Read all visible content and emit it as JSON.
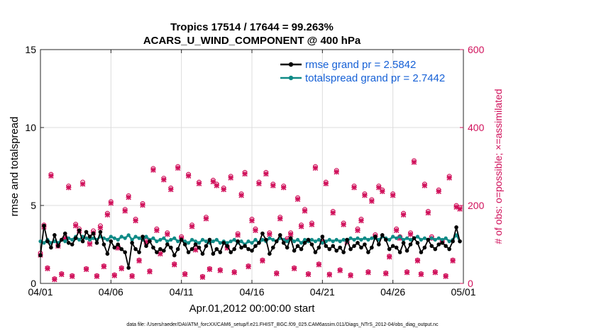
{
  "chart_data": {
    "type": "line",
    "title_line1": "Tropics 17514 / 17644 = 99.263%",
    "title_line2": "ACARS_U_WIND_COMPONENT @ 400 hPa",
    "xlabel": "Apr.01,2012 00:00:00 start",
    "ylabel_left": "rmse and totalspread",
    "ylabel_right": "# of obs: o=possible; ×=assimilated",
    "footer": "data file: /Users/raeder/DAI/ATM_forcXX/CAM6_setup/f.e21.FHIST_BGC.f09_025.CAM6assim.011/Diags_NTrS_2012-04/obs_diag_output.nc",
    "xlim": [
      0,
      30
    ],
    "ylim_left": [
      0,
      15
    ],
    "ylim_right": [
      0,
      600
    ],
    "xticks": [
      0,
      5,
      10,
      15,
      20,
      25,
      30
    ],
    "xtick_labels": [
      "04/01",
      "04/06",
      "04/11",
      "04/16",
      "04/21",
      "04/26",
      "05/01"
    ],
    "yticks_left": [
      0,
      5,
      10,
      15
    ],
    "ytick_labels_left": [
      "0",
      "5",
      "10",
      "15"
    ],
    "yticks_right": [
      0,
      200,
      400,
      600
    ],
    "ytick_labels_right": [
      "0",
      "200",
      "400",
      "600"
    ],
    "grid": true,
    "legend_position": "top-right",
    "series": [
      {
        "name": "rmse grand pr = 2.5842",
        "axis": "left",
        "color": "#000000",
        "x": [
          0.0,
          0.25,
          0.5,
          0.75,
          1.0,
          1.25,
          1.5,
          1.75,
          2.0,
          2.25,
          2.5,
          2.75,
          3.0,
          3.25,
          3.5,
          3.75,
          4.0,
          4.25,
          4.5,
          4.75,
          5.0,
          5.25,
          5.5,
          5.75,
          6.0,
          6.25,
          6.5,
          6.75,
          7.0,
          7.25,
          7.5,
          7.75,
          8.0,
          8.25,
          8.5,
          8.75,
          9.0,
          9.25,
          9.5,
          9.75,
          10.0,
          10.25,
          10.5,
          10.75,
          11.0,
          11.25,
          11.5,
          11.75,
          12.0,
          12.25,
          12.5,
          12.75,
          13.0,
          13.25,
          13.5,
          13.75,
          14.0,
          14.25,
          14.5,
          14.75,
          15.0,
          15.25,
          15.5,
          15.75,
          16.0,
          16.25,
          16.5,
          16.75,
          17.0,
          17.25,
          17.5,
          17.75,
          18.0,
          18.25,
          18.5,
          18.75,
          19.0,
          19.25,
          19.5,
          19.75,
          20.0,
          20.25,
          20.5,
          20.75,
          21.0,
          21.25,
          21.5,
          21.75,
          22.0,
          22.25,
          22.5,
          22.75,
          23.0,
          23.25,
          23.5,
          23.75,
          24.0,
          24.25,
          24.5,
          24.75,
          25.0,
          25.25,
          25.5,
          25.75,
          26.0,
          26.25,
          26.5,
          26.75,
          27.0,
          27.25,
          27.5,
          27.75,
          28.0,
          28.25,
          28.5,
          28.75,
          29.0,
          29.25,
          29.5,
          29.75
        ],
        "values": [
          1.8,
          3.7,
          2.7,
          2.3,
          3.1,
          2.4,
          2.8,
          3.2,
          2.6,
          2.5,
          2.9,
          3.4,
          2.7,
          3.3,
          3.0,
          3.2,
          2.6,
          3.3,
          2.5,
          1.9,
          2.7,
          2.3,
          2.5,
          2.2,
          2.0,
          1.0,
          2.6,
          2.2,
          2.0,
          3.0,
          2.4,
          2.7,
          2.3,
          2.0,
          2.2,
          2.1,
          2.5,
          2.3,
          1.8,
          2.2,
          2.8,
          2.5,
          2.0,
          2.2,
          2.5,
          2.3,
          1.9,
          2.4,
          2.8,
          1.9,
          2.2,
          2.0,
          2.6,
          2.4,
          2.0,
          2.2,
          2.7,
          2.3,
          2.4,
          2.2,
          2.1,
          2.4,
          2.6,
          3.2,
          2.8,
          1.9,
          2.3,
          2.7,
          3.1,
          2.6,
          2.3,
          2.9,
          2.1,
          2.4,
          2.2,
          2.6,
          2.8,
          2.5,
          2.0,
          2.3,
          3.0,
          2.4,
          2.2,
          2.4,
          2.1,
          2.3,
          2.0,
          2.8,
          2.2,
          2.4,
          2.6,
          2.3,
          2.5,
          2.0,
          2.3,
          3.0,
          2.5,
          3.1,
          2.8,
          2.2,
          2.4,
          2.3,
          2.0,
          2.6,
          2.1,
          2.5,
          2.9,
          2.6,
          2.0,
          2.3,
          2.8,
          2.4,
          2.2,
          2.5,
          2.6,
          2.4,
          2.2,
          2.7,
          3.6,
          2.7
        ]
      },
      {
        "name": "totalspread grand pr = 2.7442",
        "axis": "left",
        "color": "#0f8a86",
        "x": [
          0.0,
          0.25,
          0.5,
          0.75,
          1.0,
          1.25,
          1.5,
          1.75,
          2.0,
          2.25,
          2.5,
          2.75,
          3.0,
          3.25,
          3.5,
          3.75,
          4.0,
          4.25,
          4.5,
          4.75,
          5.0,
          5.25,
          5.5,
          5.75,
          6.0,
          6.25,
          6.5,
          6.75,
          7.0,
          7.25,
          7.5,
          7.75,
          8.0,
          8.25,
          8.5,
          8.75,
          9.0,
          9.25,
          9.5,
          9.75,
          10.0,
          10.25,
          10.5,
          10.75,
          11.0,
          11.25,
          11.5,
          11.75,
          12.0,
          12.25,
          12.5,
          12.75,
          13.0,
          13.25,
          13.5,
          13.75,
          14.0,
          14.25,
          14.5,
          14.75,
          15.0,
          15.25,
          15.5,
          15.75,
          16.0,
          16.25,
          16.5,
          16.75,
          17.0,
          17.25,
          17.5,
          17.75,
          18.0,
          18.25,
          18.5,
          18.75,
          19.0,
          19.25,
          19.5,
          19.75,
          20.0,
          20.25,
          20.5,
          20.75,
          21.0,
          21.25,
          21.5,
          21.75,
          22.0,
          22.25,
          22.5,
          22.75,
          23.0,
          23.25,
          23.5,
          23.75,
          24.0,
          24.25,
          24.5,
          24.75,
          25.0,
          25.25,
          25.5,
          25.75,
          26.0,
          26.25,
          26.5,
          26.75,
          27.0,
          27.25,
          27.5,
          27.75,
          28.0,
          28.25,
          28.5,
          28.75,
          29.0,
          29.25,
          29.5,
          29.75
        ],
        "values": [
          2.7,
          2.6,
          2.8,
          2.6,
          2.7,
          2.6,
          2.8,
          2.7,
          2.9,
          2.8,
          3.0,
          2.8,
          3.0,
          2.9,
          2.8,
          2.9,
          2.8,
          3.0,
          2.9,
          2.8,
          3.0,
          2.9,
          2.8,
          3.0,
          2.9,
          3.1,
          2.8,
          3.0,
          2.9,
          2.8,
          3.0,
          2.8,
          2.9,
          2.7,
          2.8,
          2.9,
          2.7,
          2.8,
          2.9,
          2.7,
          2.8,
          2.7,
          2.6,
          2.8,
          2.7,
          2.6,
          2.8,
          2.7,
          2.6,
          2.7,
          2.8,
          2.6,
          2.7,
          2.6,
          2.7,
          2.8,
          2.6,
          2.7,
          2.5,
          2.7,
          2.6,
          2.8,
          2.6,
          2.8,
          2.7,
          2.9,
          2.8,
          2.7,
          2.9,
          2.8,
          2.7,
          2.9,
          2.7,
          2.8,
          2.6,
          2.8,
          2.7,
          2.8,
          2.7,
          2.8,
          2.6,
          2.7,
          2.8,
          2.7,
          2.8,
          2.7,
          2.8,
          2.7,
          2.9,
          2.8,
          2.9,
          2.8,
          2.9,
          2.8,
          2.9,
          2.9,
          2.8,
          3.0,
          2.9,
          2.8,
          3.0,
          2.9,
          3.0,
          2.8,
          2.9,
          2.8,
          2.9,
          3.0,
          2.8,
          2.9,
          2.8,
          2.9,
          2.8,
          2.9,
          2.8,
          2.9,
          2.7,
          2.8,
          3.1,
          2.7
        ]
      },
      {
        "name": "possible",
        "axis": "right",
        "color": "#d0115b",
        "marker": "o",
        "x": [
          0.0,
          0.25,
          0.5,
          0.75,
          1.0,
          1.25,
          1.5,
          1.75,
          2.0,
          2.25,
          2.5,
          2.75,
          3.0,
          3.25,
          3.5,
          3.75,
          4.0,
          4.25,
          4.5,
          4.75,
          5.0,
          5.25,
          5.5,
          5.75,
          6.0,
          6.25,
          6.5,
          6.75,
          7.0,
          7.25,
          7.5,
          7.75,
          8.0,
          8.25,
          8.5,
          8.75,
          9.0,
          9.25,
          9.5,
          9.75,
          10.0,
          10.25,
          10.5,
          10.75,
          11.0,
          11.25,
          11.5,
          11.75,
          12.0,
          12.25,
          12.5,
          12.75,
          13.0,
          13.25,
          13.5,
          13.75,
          14.0,
          14.25,
          14.5,
          14.75,
          15.0,
          15.25,
          15.5,
          15.75,
          16.0,
          16.25,
          16.5,
          16.75,
          17.0,
          17.25,
          17.5,
          17.75,
          18.0,
          18.25,
          18.5,
          18.75,
          19.0,
          19.25,
          19.5,
          19.75,
          20.0,
          20.25,
          20.5,
          20.75,
          21.0,
          21.25,
          21.5,
          21.75,
          22.0,
          22.25,
          22.5,
          22.75,
          23.0,
          23.25,
          23.5,
          23.75,
          24.0,
          24.25,
          24.5,
          24.75,
          25.0,
          25.25,
          25.5,
          25.75,
          26.0,
          26.25,
          26.5,
          26.75,
          27.0,
          27.25,
          27.5,
          27.75,
          28.0,
          28.25,
          28.5,
          28.75,
          29.0,
          29.25,
          29.5,
          29.75
        ],
        "values": [
          78,
          150,
          40,
          280,
          12,
          100,
          25,
          120,
          250,
          20,
          152,
          140,
          260,
          38,
          105,
          135,
          20,
          148,
          45,
          180,
          210,
          22,
          95,
          40,
          190,
          225,
          20,
          165,
          60,
          205,
          110,
          32,
          295,
          140,
          80,
          270,
          130,
          245,
          50,
          300,
          120,
          25,
          280,
          150,
          90,
          260,
          18,
          170,
          38,
          265,
          255,
          35,
          245,
          95,
          275,
          30,
          128,
          230,
          285,
          45,
          165,
          140,
          260,
          60,
          285,
          130,
          255,
          27,
          170,
          250,
          115,
          130,
          40,
          220,
          150,
          190,
          25,
          155,
          300,
          50,
          110,
          260,
          24,
          185,
          290,
          35,
          155,
          110,
          22,
          250,
          140,
          165,
          230,
          30,
          215,
          125,
          250,
          240,
          27,
          70,
          230,
          140,
          120,
          180,
          30,
          130,
          315,
          60,
          25,
          255,
          185,
          120,
          30,
          240,
          110,
          20,
          275,
          60,
          200,
          195
        ]
      },
      {
        "name": "assimilated",
        "axis": "right",
        "color": "#d0115b",
        "marker": "x",
        "x": [
          0.0,
          0.25,
          0.5,
          0.75,
          1.0,
          1.25,
          1.5,
          1.75,
          2.0,
          2.25,
          2.5,
          2.75,
          3.0,
          3.25,
          3.5,
          3.75,
          4.0,
          4.25,
          4.5,
          4.75,
          5.0,
          5.25,
          5.5,
          5.75,
          6.0,
          6.25,
          6.5,
          6.75,
          7.0,
          7.25,
          7.5,
          7.75,
          8.0,
          8.25,
          8.5,
          8.75,
          9.0,
          9.25,
          9.5,
          9.75,
          10.0,
          10.25,
          10.5,
          10.75,
          11.0,
          11.25,
          11.5,
          11.75,
          12.0,
          12.25,
          12.5,
          12.75,
          13.0,
          13.25,
          13.5,
          13.75,
          14.0,
          14.25,
          14.5,
          14.75,
          15.0,
          15.25,
          15.5,
          15.75,
          16.0,
          16.25,
          16.5,
          16.75,
          17.0,
          17.25,
          17.5,
          17.75,
          18.0,
          18.25,
          18.5,
          18.75,
          19.0,
          19.25,
          19.5,
          19.75,
          20.0,
          20.25,
          20.5,
          20.75,
          21.0,
          21.25,
          21.5,
          21.75,
          22.0,
          22.25,
          22.5,
          22.75,
          23.0,
          23.25,
          23.5,
          23.75,
          24.0,
          24.25,
          24.5,
          24.75,
          25.0,
          25.25,
          25.5,
          25.75,
          26.0,
          26.25,
          26.5,
          26.75,
          27.0,
          27.25,
          27.5,
          27.75,
          28.0,
          28.25,
          28.5,
          28.75,
          29.0,
          29.25,
          29.5,
          29.75
        ],
        "values": [
          73,
          145,
          38,
          276,
          10,
          96,
          23,
          115,
          246,
          18,
          148,
          135,
          255,
          36,
          101,
          130,
          18,
          143,
          43,
          176,
          206,
          20,
          91,
          38,
          186,
          221,
          18,
          161,
          58,
          201,
          106,
          30,
          291,
          136,
          76,
          266,
          126,
          241,
          48,
          296,
          116,
          23,
          276,
          146,
          86,
          256,
          16,
          166,
          36,
          261,
          251,
          33,
          241,
          91,
          271,
          28,
          124,
          226,
          281,
          43,
          161,
          136,
          256,
          58,
          281,
          126,
          251,
          25,
          166,
          246,
          111,
          126,
          38,
          216,
          146,
          186,
          23,
          151,
          296,
          48,
          106,
          256,
          22,
          181,
          286,
          33,
          151,
          106,
          20,
          246,
          136,
          161,
          226,
          28,
          211,
          121,
          246,
          236,
          25,
          68,
          226,
          136,
          116,
          176,
          28,
          126,
          311,
          58,
          23,
          251,
          181,
          116,
          28,
          236,
          106,
          18,
          271,
          58,
          196,
          191
        ]
      }
    ]
  }
}
